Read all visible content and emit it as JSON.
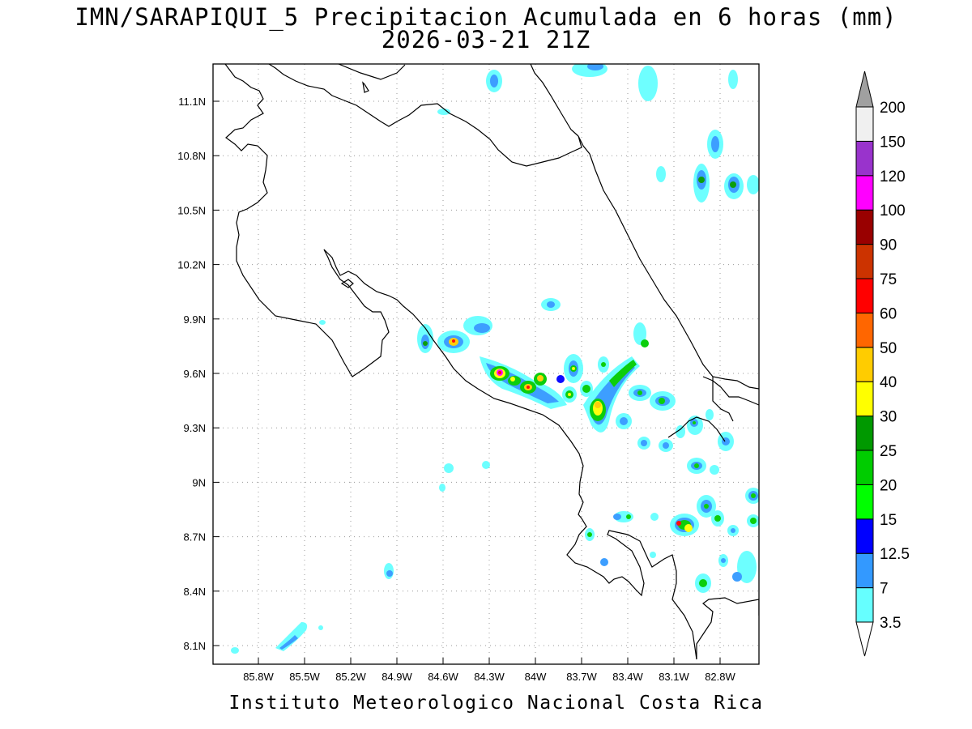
{
  "title_line1": "IMN/SARAPIQUI_5 Precipitacion Acumulada en 6 horas (mm)",
  "title_line2": "2026-03-21 21Z",
  "footer": "Instituto Meteorologico Nacional Costa Rica",
  "map": {
    "lon_range": [
      -86.0,
      -82.6
    ],
    "lat_range": [
      8.0,
      11.3
    ],
    "lon_ticks": [
      -85.8,
      -85.5,
      -85.2,
      -84.9,
      -84.6,
      -84.3,
      -84.0,
      -83.7,
      -83.4,
      -83.1,
      -82.8
    ],
    "lon_tick_labels": [
      "85.8W",
      "85.5W",
      "85.2W",
      "84.9W",
      "84.6W",
      "84.3W",
      "84W",
      "83.7W",
      "83.4W",
      "83.1W",
      "82.8W"
    ],
    "lat_ticks": [
      8.1,
      8.4,
      8.7,
      9.0,
      9.3,
      9.6,
      9.9,
      10.2,
      10.5,
      10.8,
      11.1
    ],
    "lat_tick_labels": [
      "8.1N",
      "8.4N",
      "8.7N",
      "9N",
      "9.3N",
      "9.6N",
      "9.9N",
      "10.2N",
      "10.5N",
      "10.8N",
      "11.1N"
    ],
    "grid": true
  },
  "legend": {
    "labels": [
      "3.5",
      "7",
      "12.5",
      "15",
      "20",
      "25",
      "30",
      "40",
      "50",
      "60",
      "75",
      "90",
      "100",
      "120",
      "150",
      "200"
    ],
    "colors": [
      "#66ffff",
      "#3399ff",
      "#0000ff",
      "#00ff00",
      "#00cc00",
      "#009900",
      "#ffff00",
      "#ffcc00",
      "#ff6600",
      "#ff0000",
      "#cc3300",
      "#990000",
      "#ff00ff",
      "#9933cc",
      "#f0f0f0",
      "#a0a0a0"
    ]
  },
  "precip_cells": [
    {
      "lon": -84.07,
      "lat": 9.61,
      "mm": 75
    },
    {
      "lon": -84.12,
      "lat": 9.62,
      "mm": 40
    },
    {
      "lon": -83.97,
      "lat": 9.53,
      "mm": 60
    },
    {
      "lon": -83.89,
      "lat": 9.57,
      "mm": 50
    },
    {
      "lon": -84.46,
      "lat": 9.79,
      "mm": 60
    },
    {
      "lon": -83.53,
      "lat": 9.41,
      "mm": 40
    },
    {
      "lon": -82.98,
      "lat": 8.77,
      "mm": 40
    },
    {
      "lon": -83.68,
      "lat": 9.59,
      "mm": 30
    },
    {
      "lon": -83.38,
      "lat": 9.55,
      "mm": 25
    },
    {
      "lon": -83.3,
      "lat": 9.44,
      "mm": 20
    },
    {
      "lon": -84.3,
      "lat": 9.85,
      "mm": 15
    },
    {
      "lon": -84.58,
      "lat": 9.77,
      "mm": 25
    },
    {
      "lon": -82.86,
      "lat": 8.85,
      "mm": 20
    },
    {
      "lon": -82.92,
      "lat": 8.45,
      "mm": 15
    },
    {
      "lon": -82.71,
      "lat": 10.68,
      "mm": 20
    },
    {
      "lon": -82.83,
      "lat": 10.67,
      "mm": 20
    },
    {
      "lon": -83.12,
      "lat": 9.18,
      "mm": 15
    },
    {
      "lon": -82.95,
      "lat": 9.08,
      "mm": 15
    }
  ]
}
